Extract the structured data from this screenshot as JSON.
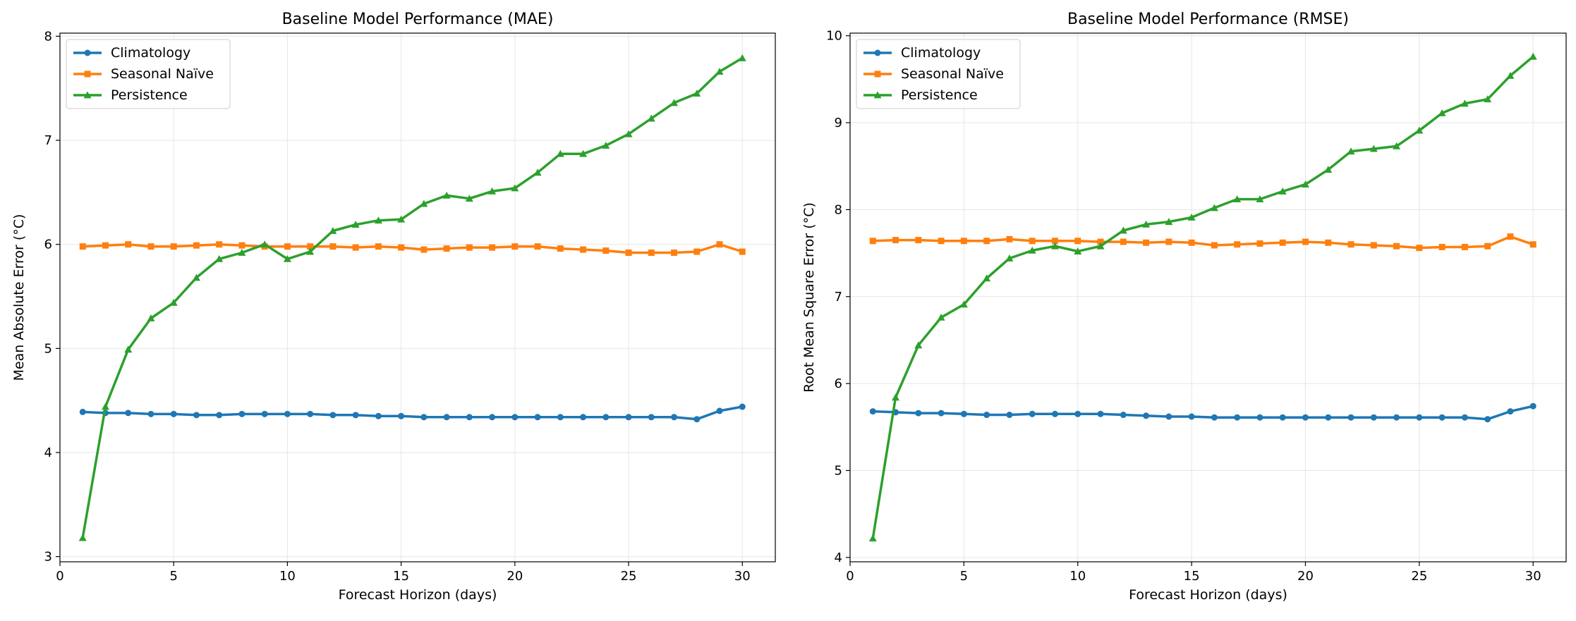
{
  "chart_data": [
    {
      "type": "line",
      "title": "Baseline Model Performance (MAE)",
      "xlabel": "Forecast Horizon (days)",
      "ylabel": "Mean Absolute Error (°C)",
      "xlim": [
        0,
        31.45
      ],
      "ylim": [
        2.95,
        8.03
      ],
      "xticks": [
        0,
        5,
        10,
        15,
        20,
        25,
        30
      ],
      "yticks": [
        3,
        4,
        5,
        6,
        7,
        8
      ],
      "grid": true,
      "legend_position": "upper-left",
      "x": [
        1,
        2,
        3,
        4,
        5,
        6,
        7,
        8,
        9,
        10,
        11,
        12,
        13,
        14,
        15,
        16,
        17,
        18,
        19,
        20,
        21,
        22,
        23,
        24,
        25,
        26,
        27,
        28,
        29,
        30
      ],
      "series": [
        {
          "name": "Climatology",
          "color": "#1f77b4",
          "marker": "circle",
          "values": [
            4.39,
            4.38,
            4.38,
            4.37,
            4.37,
            4.36,
            4.36,
            4.37,
            4.37,
            4.37,
            4.37,
            4.36,
            4.36,
            4.35,
            4.35,
            4.34,
            4.34,
            4.34,
            4.34,
            4.34,
            4.34,
            4.34,
            4.34,
            4.34,
            4.34,
            4.34,
            4.34,
            4.32,
            4.4,
            4.44
          ]
        },
        {
          "name": "Seasonal Naïve",
          "color": "#ff7f0e",
          "marker": "square",
          "values": [
            5.98,
            5.99,
            6.0,
            5.98,
            5.98,
            5.99,
            6.0,
            5.99,
            5.98,
            5.98,
            5.98,
            5.98,
            5.97,
            5.98,
            5.97,
            5.95,
            5.96,
            5.97,
            5.97,
            5.98,
            5.98,
            5.96,
            5.95,
            5.94,
            5.92,
            5.92,
            5.92,
            5.93,
            6.0,
            5.93
          ]
        },
        {
          "name": "Persistence",
          "color": "#2ca02c",
          "marker": "triangle",
          "values": [
            3.18,
            4.44,
            4.99,
            5.29,
            5.44,
            5.68,
            5.86,
            5.92,
            6.0,
            5.86,
            5.93,
            6.13,
            6.19,
            6.23,
            6.24,
            6.39,
            6.47,
            6.44,
            6.51,
            6.54,
            6.69,
            6.87,
            6.87,
            6.95,
            7.06,
            7.21,
            7.36,
            7.45,
            7.66,
            7.79
          ]
        }
      ]
    },
    {
      "type": "line",
      "title": "Baseline Model Performance (RMSE)",
      "xlabel": "Forecast Horizon (days)",
      "ylabel": "Root Mean Square Error (°C)",
      "xlim": [
        0,
        31.45
      ],
      "ylim": [
        3.95,
        10.03
      ],
      "xticks": [
        0,
        5,
        10,
        15,
        20,
        25,
        30
      ],
      "yticks": [
        4,
        5,
        6,
        7,
        8,
        9,
        10
      ],
      "grid": true,
      "legend_position": "upper-left",
      "x": [
        1,
        2,
        3,
        4,
        5,
        6,
        7,
        8,
        9,
        10,
        11,
        12,
        13,
        14,
        15,
        16,
        17,
        18,
        19,
        20,
        21,
        22,
        23,
        24,
        25,
        26,
        27,
        28,
        29,
        30
      ],
      "series": [
        {
          "name": "Climatology",
          "color": "#1f77b4",
          "marker": "circle",
          "values": [
            5.68,
            5.67,
            5.66,
            5.66,
            5.65,
            5.64,
            5.64,
            5.65,
            5.65,
            5.65,
            5.65,
            5.64,
            5.63,
            5.62,
            5.62,
            5.61,
            5.61,
            5.61,
            5.61,
            5.61,
            5.61,
            5.61,
            5.61,
            5.61,
            5.61,
            5.61,
            5.61,
            5.59,
            5.68,
            5.74
          ]
        },
        {
          "name": "Seasonal Naïve",
          "color": "#ff7f0e",
          "marker": "square",
          "values": [
            7.64,
            7.65,
            7.65,
            7.64,
            7.64,
            7.64,
            7.66,
            7.64,
            7.64,
            7.64,
            7.63,
            7.63,
            7.62,
            7.63,
            7.62,
            7.59,
            7.6,
            7.61,
            7.62,
            7.63,
            7.62,
            7.6,
            7.59,
            7.58,
            7.56,
            7.57,
            7.57,
            7.58,
            7.69,
            7.6
          ]
        },
        {
          "name": "Persistence",
          "color": "#2ca02c",
          "marker": "triangle",
          "values": [
            4.22,
            5.84,
            6.44,
            6.76,
            6.91,
            7.21,
            7.44,
            7.53,
            7.58,
            7.52,
            7.58,
            7.76,
            7.83,
            7.86,
            7.91,
            8.02,
            8.12,
            8.12,
            8.21,
            8.29,
            8.46,
            8.67,
            8.7,
            8.73,
            8.91,
            9.11,
            9.22,
            9.27,
            9.54,
            9.76
          ]
        }
      ]
    }
  ]
}
